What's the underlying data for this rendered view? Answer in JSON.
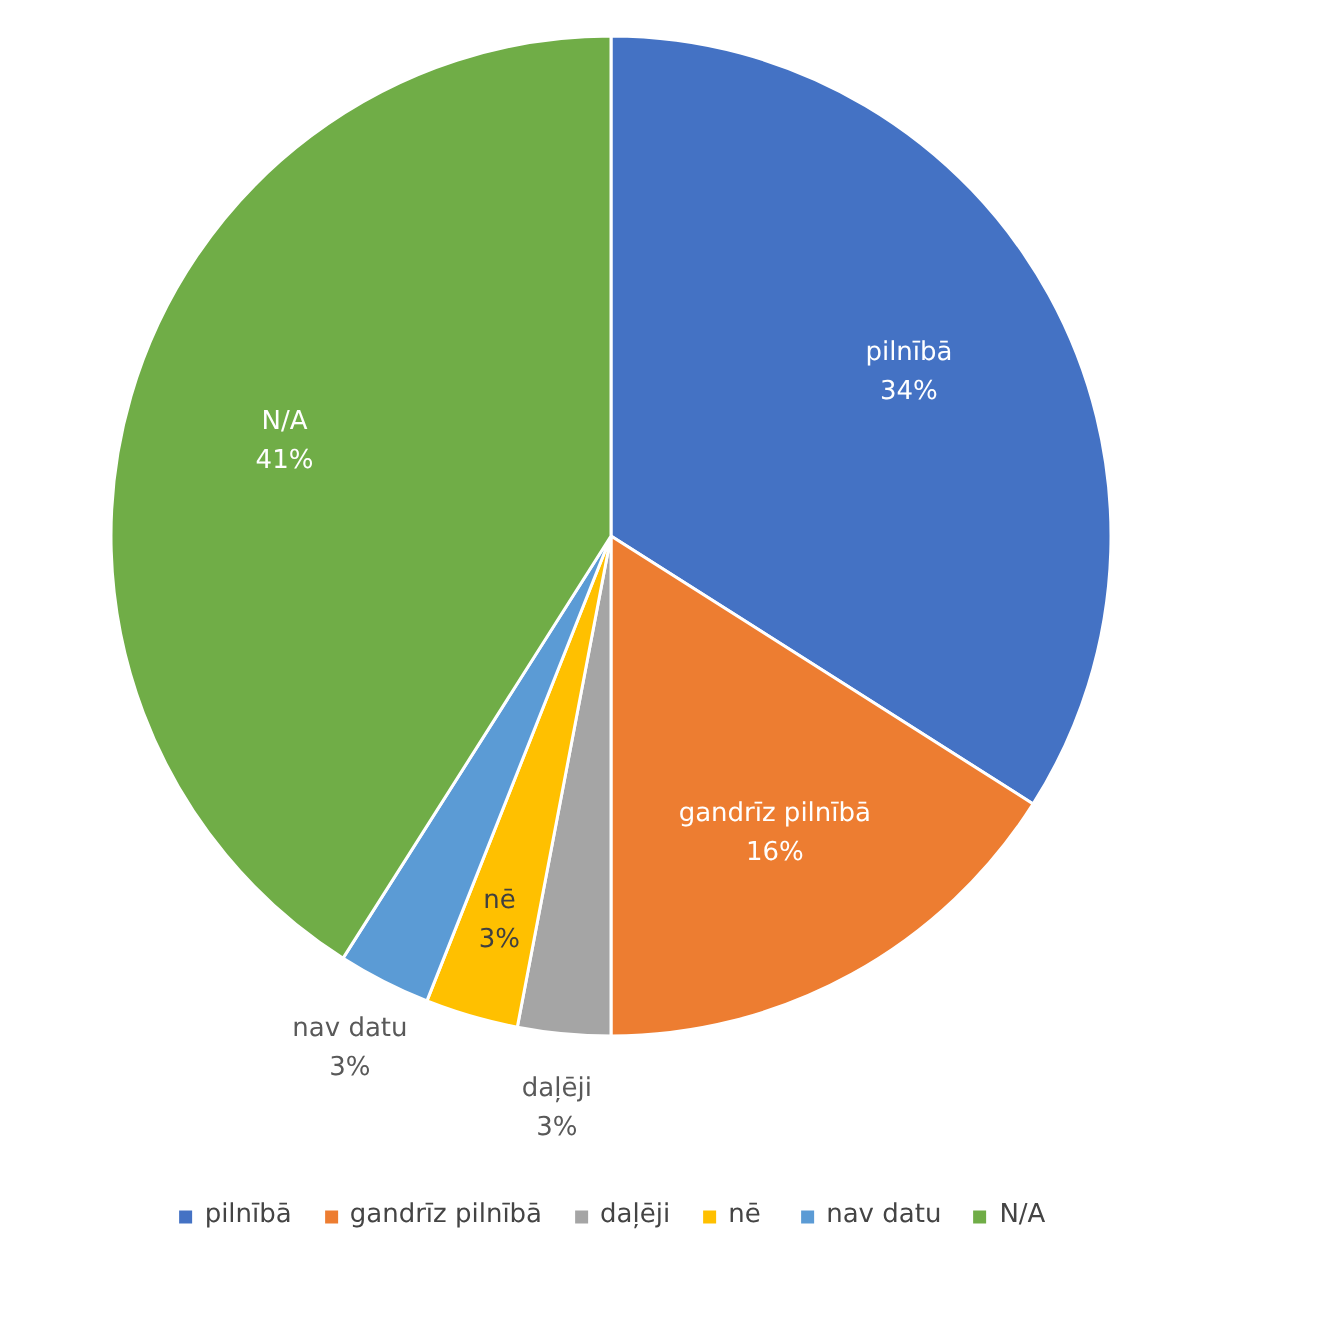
{
  "chart_data": {
    "type": "pie",
    "categories": [
      "pilnībā",
      "gandrīz pilnībā",
      "daļēji",
      "nē",
      "nav datu",
      "N/A"
    ],
    "values": [
      34,
      16,
      3,
      3,
      3,
      41
    ],
    "colors": [
      "#4472c4",
      "#ed7d31",
      "#a5a5a5",
      "#ffc000",
      "#5b9bd5",
      "#70ad47"
    ],
    "value_labels": [
      "34%",
      "16%",
      "3%",
      "3%",
      "3%",
      "41%"
    ],
    "legend": "bottom"
  }
}
